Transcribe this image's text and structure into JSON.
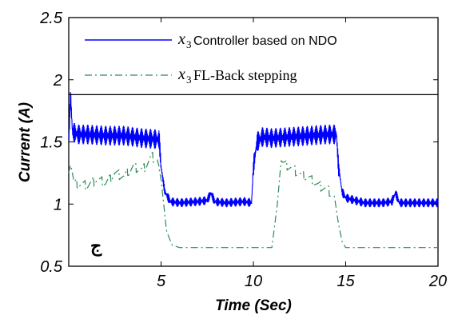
{
  "chart_data": {
    "type": "line",
    "xlabel": "Time (Sec)",
    "ylabel": "Current (A)",
    "xlim": [
      0,
      20
    ],
    "ylim": [
      0.5,
      2.5
    ],
    "x_ticks": [
      "5",
      "10",
      "15",
      "20"
    ],
    "y_ticks": [
      "0.5",
      "1",
      "1.5",
      "2",
      "2.5"
    ],
    "grid": false,
    "legend_position": "top",
    "annotation": "ج",
    "horizontal_line_y": 1.88,
    "series": [
      {
        "name": "Controller based on NDO",
        "legend_symbol": "x",
        "legend_subscript": "3",
        "color": "#0000ff",
        "style": "solid",
        "x": [
          0.0,
          0.1,
          0.2,
          0.5,
          1.0,
          2.0,
          3.0,
          4.0,
          4.9,
          5.0,
          5.2,
          5.5,
          6.0,
          7.0,
          7.5,
          7.7,
          7.9,
          8.5,
          9.5,
          9.9,
          10.0,
          10.2,
          10.5,
          11.0,
          12.0,
          13.0,
          14.0,
          14.5,
          14.6,
          14.8,
          15.0,
          16.0,
          17.0,
          17.5,
          17.7,
          17.9,
          19.0,
          20.0
        ],
        "values": [
          1.52,
          1.88,
          1.58,
          1.56,
          1.56,
          1.55,
          1.55,
          1.53,
          1.52,
          1.3,
          1.1,
          1.02,
          1.01,
          1.02,
          1.03,
          1.09,
          1.02,
          1.01,
          1.02,
          1.01,
          1.3,
          1.5,
          1.54,
          1.53,
          1.54,
          1.55,
          1.56,
          1.56,
          1.32,
          1.1,
          1.05,
          1.01,
          1.01,
          1.02,
          1.09,
          1.01,
          1.01,
          1.01
        ],
        "noise_amplitude": 0.08
      },
      {
        "name": "FL-Back stepping",
        "legend_symbol": "x",
        "legend_subscript": "3",
        "color": "#2e8b57",
        "style": "dash-dot",
        "x": [
          0.0,
          0.1,
          0.3,
          1.0,
          1.5,
          2.0,
          2.5,
          3.0,
          3.5,
          4.0,
          4.5,
          4.8,
          5.0,
          5.3,
          5.6,
          6.0,
          8.0,
          10.0,
          11.0,
          11.3,
          11.5,
          11.7,
          12.0,
          12.5,
          13.0,
          13.5,
          14.0,
          14.4,
          14.6,
          14.8,
          15.0,
          17.0,
          20.0
        ],
        "values": [
          1.25,
          1.32,
          1.17,
          1.15,
          1.2,
          1.17,
          1.25,
          1.22,
          1.3,
          1.27,
          1.38,
          1.35,
          1.2,
          0.78,
          0.67,
          0.65,
          0.65,
          0.65,
          0.65,
          1.0,
          1.35,
          1.32,
          1.3,
          1.24,
          1.21,
          1.15,
          1.12,
          1.05,
          0.85,
          0.7,
          0.65,
          0.65,
          0.65
        ]
      }
    ]
  }
}
